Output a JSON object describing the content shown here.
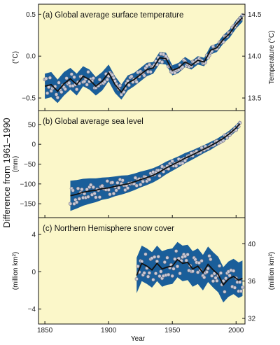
{
  "figure": {
    "shared_ylabel": "Difference from 1961–1990",
    "xlabel": "Year",
    "x_ticks": [
      1850,
      1900,
      1950,
      2000
    ],
    "xlim": [
      1845,
      2007
    ]
  },
  "chart_data": [
    {
      "type": "line",
      "title": "(a) Global average surface temperature",
      "ylabel": "(°C)",
      "ylabel_right": "Temperature (°C)",
      "ylim": [
        -0.65,
        0.62
      ],
      "y_ticks": [
        -0.5,
        0.0,
        0.5
      ],
      "y_tick_labels": [
        "−0.5",
        "0.0",
        "0.5"
      ],
      "y2_ticks": [
        13.5,
        14.0,
        14.5
      ],
      "y2_tick_labels": [
        "13.5",
        "14.0",
        "14.5"
      ],
      "y2_offset": 14.0,
      "x": [
        1850,
        1855,
        1860,
        1865,
        1870,
        1875,
        1880,
        1885,
        1890,
        1895,
        1900,
        1905,
        1910,
        1915,
        1920,
        1925,
        1930,
        1935,
        1940,
        1945,
        1950,
        1955,
        1960,
        1965,
        1970,
        1975,
        1980,
        1985,
        1990,
        1995,
        2000,
        2005
      ],
      "smooth": [
        -0.36,
        -0.34,
        -0.42,
        -0.33,
        -0.27,
        -0.34,
        -0.24,
        -0.28,
        -0.36,
        -0.3,
        -0.2,
        -0.34,
        -0.43,
        -0.32,
        -0.28,
        -0.22,
        -0.16,
        -0.14,
        -0.02,
        -0.03,
        -0.17,
        -0.14,
        -0.07,
        -0.11,
        -0.05,
        -0.07,
        0.07,
        0.1,
        0.2,
        0.27,
        0.38,
        0.46
      ],
      "band_halfwidth": [
        0.15,
        0.15,
        0.14,
        0.14,
        0.13,
        0.13,
        0.12,
        0.12,
        0.11,
        0.11,
        0.1,
        0.1,
        0.09,
        0.09,
        0.08,
        0.08,
        0.08,
        0.07,
        0.07,
        0.07,
        0.06,
        0.06,
        0.06,
        0.05,
        0.05,
        0.05,
        0.05,
        0.05,
        0.05,
        0.05,
        0.05,
        0.05
      ],
      "band_color": "#1a5e9a",
      "line_color": "#111111"
    },
    {
      "type": "line",
      "title": "(b) Global average sea level",
      "ylabel": "(mm)",
      "ylim": [
        -185,
        85
      ],
      "y_ticks": [
        -150,
        -100,
        -50,
        0,
        50
      ],
      "y_tick_labels": [
        "−150",
        "−100",
        "−50",
        "0",
        "50"
      ],
      "x": [
        1870,
        1875,
        1880,
        1885,
        1890,
        1895,
        1900,
        1905,
        1910,
        1915,
        1920,
        1925,
        1930,
        1935,
        1940,
        1945,
        1950,
        1955,
        1960,
        1965,
        1970,
        1975,
        1980,
        1985,
        1990,
        1995,
        2000,
        2003
      ],
      "smooth": [
        -130,
        -126,
        -121,
        -118,
        -116,
        -112,
        -110,
        -106,
        -103,
        -100,
        -95,
        -89,
        -84,
        -78,
        -70,
        -60,
        -52,
        -44,
        -35,
        -28,
        -20,
        -12,
        -4,
        5,
        15,
        27,
        41,
        52
      ],
      "band_halfwidth": [
        38,
        36,
        34,
        32,
        30,
        28,
        27,
        25,
        24,
        22,
        21,
        20,
        19,
        18,
        17,
        16,
        15,
        14,
        13,
        12,
        11,
        10,
        10,
        9,
        9,
        8,
        8,
        8
      ],
      "band_color": "#1a5e9a",
      "line_color": "#111111"
    },
    {
      "type": "line",
      "title": "(c) Northern Hemisphere snow cover",
      "ylabel": "(million km²)",
      "ylabel_right": "(million km²)",
      "ylim": [
        -5.6,
        5.8
      ],
      "y_ticks": [
        -4,
        0,
        4
      ],
      "y_tick_labels": [
        "−4",
        "0",
        "4"
      ],
      "y2_ticks": [
        32,
        36,
        40
      ],
      "y2_tick_labels": [
        "32",
        "36",
        "40"
      ],
      "y2_offset": 37.0,
      "x": [
        1922,
        1926,
        1930,
        1934,
        1938,
        1942,
        1946,
        1950,
        1954,
        1958,
        1962,
        1966,
        1970,
        1974,
        1978,
        1982,
        1986,
        1990,
        1994,
        1998,
        2002,
        2005
      ],
      "smooth": [
        -0.4,
        0.9,
        0.6,
        0.2,
        0.9,
        0.3,
        0.5,
        0.6,
        1.3,
        0.9,
        1.0,
        0.3,
        0.6,
        -0.1,
        0.8,
        0.2,
        -0.3,
        -1.4,
        -0.8,
        -0.5,
        -0.9,
        -0.7
      ],
      "band_halfwidth": [
        1.9,
        1.9,
        1.9,
        1.9,
        1.9,
        1.9,
        1.9,
        1.9,
        1.9,
        1.9,
        1.9,
        1.9,
        1.9,
        1.9,
        1.9,
        1.9,
        1.9,
        1.9,
        1.9,
        1.9,
        1.9,
        1.9
      ],
      "band_color": "#1a5e9a",
      "line_color": "#111111"
    }
  ]
}
